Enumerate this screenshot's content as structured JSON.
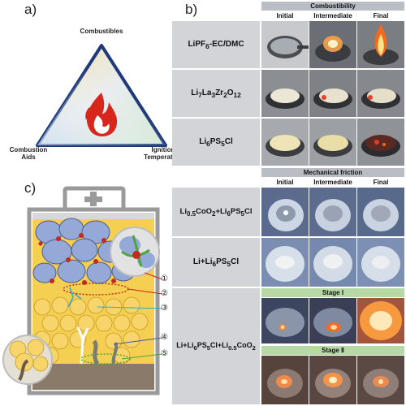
{
  "panels": {
    "a": "a)",
    "b": "b)",
    "c": "c)"
  },
  "triangle": {
    "top": "Combustibles",
    "left": "Combustion\nAids",
    "right": "Ignition\nTemperature"
  },
  "combustibility": {
    "header": "Combustibility",
    "columns": [
      "Initial",
      "Intermediate",
      "Final"
    ],
    "rows": [
      {
        "formula": "LiPF",
        "sub1": "6",
        "rest": "-EC/DMC"
      },
      {
        "formula": "Li",
        "sub1": "7",
        "mid": "La",
        "sub2": "3",
        "mid2": "Zr",
        "sub3": "2",
        "mid3": "O",
        "sub4": "12"
      },
      {
        "formula": "Li",
        "sub1": "6",
        "mid": "PS",
        "sub2": "5",
        "mid2": "Cl"
      }
    ]
  },
  "friction": {
    "header": "Mechanical friction",
    "columns": [
      "Initial",
      "Intermediate",
      "Final"
    ],
    "row1": {
      "a": "Li",
      "s1": "0.5",
      "b": "CoO",
      "s2": "2",
      "c": "+Li",
      "s3": "6",
      "d": "PS",
      "s4": "5",
      "e": "Cl"
    },
    "row2": {
      "a": "Li+Li",
      "s1": "6",
      "b": "PS",
      "s2": "5",
      "c": "Cl"
    },
    "row3": {
      "a": "Li+Li",
      "s1": "6",
      "b": "PS",
      "s2": "5",
      "c": "Cl+Li",
      "s3": "0.5",
      "d": "CoO",
      "s4": "2"
    },
    "stage1": "Stage Ⅰ",
    "stage2": "Stage Ⅱ"
  },
  "callouts": [
    "①",
    "②",
    "③",
    "④",
    "⑤"
  ]
}
